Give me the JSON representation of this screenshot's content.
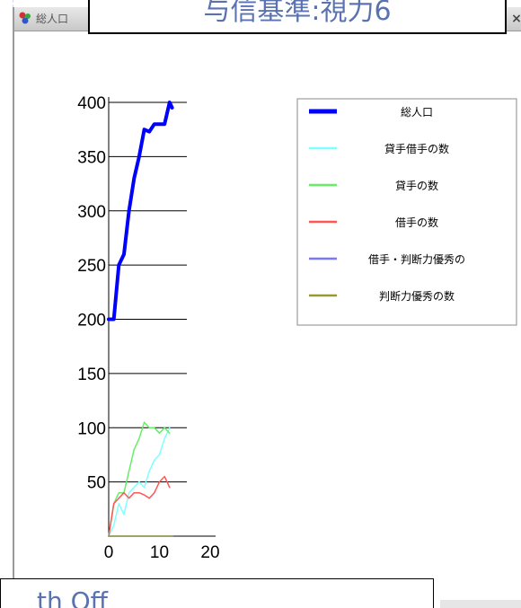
{
  "window": {
    "title": "総人口",
    "close_label": "×"
  },
  "slide": {
    "title": "与信基準:視力6",
    "bottom_text": "th Off"
  },
  "legend": [
    {
      "label": "総人口",
      "color": "#0000ff",
      "width": 4
    },
    {
      "label": "貸手借手の数",
      "color": "#7fffff",
      "width": 1.5
    },
    {
      "label": "貸手の数",
      "color": "#66ee66",
      "width": 1.5
    },
    {
      "label": "借手の数",
      "color": "#ff5555",
      "width": 1.5
    },
    {
      "label": "借手・判断力優秀の",
      "color": "#7777ff",
      "width": 1.5
    },
    {
      "label": "判断力優秀の数",
      "color": "#999933",
      "width": 1.5
    }
  ],
  "chart_data": {
    "type": "line",
    "xlim": [
      0,
      20
    ],
    "ylim": [
      0,
      400
    ],
    "xticks": [
      "0",
      "10",
      "20"
    ],
    "yticks": [
      "50",
      "100",
      "150",
      "200",
      "250",
      "300",
      "350",
      "400"
    ],
    "legend_position": "top-right",
    "series": [
      {
        "name": "総人口",
        "color": "#0000ff",
        "width": 4,
        "points": [
          [
            0,
            200
          ],
          [
            1,
            200
          ],
          [
            2,
            250
          ],
          [
            3,
            260
          ],
          [
            4,
            300
          ],
          [
            5,
            330
          ],
          [
            6,
            350
          ],
          [
            7,
            375
          ],
          [
            8,
            373
          ],
          [
            9,
            380
          ],
          [
            10,
            380
          ],
          [
            11,
            380
          ],
          [
            12,
            400
          ],
          [
            12.5,
            395
          ]
        ]
      },
      {
        "name": "貸手借手の数",
        "color": "#7fffff",
        "width": 1.5,
        "points": [
          [
            0,
            0
          ],
          [
            1,
            10
          ],
          [
            2,
            30
          ],
          [
            3,
            20
          ],
          [
            4,
            40
          ],
          [
            5,
            45
          ],
          [
            6,
            50
          ],
          [
            7,
            45
          ],
          [
            8,
            60
          ],
          [
            9,
            70
          ],
          [
            10,
            75
          ],
          [
            11,
            90
          ],
          [
            12,
            100
          ]
        ]
      },
      {
        "name": "貸手の数",
        "color": "#66ee66",
        "width": 1.5,
        "points": [
          [
            0,
            0
          ],
          [
            1,
            30
          ],
          [
            2,
            40
          ],
          [
            3,
            40
          ],
          [
            4,
            60
          ],
          [
            5,
            80
          ],
          [
            6,
            90
          ],
          [
            7,
            105
          ],
          [
            8,
            100
          ],
          [
            9,
            100
          ],
          [
            10,
            95
          ],
          [
            11,
            100
          ],
          [
            12,
            95
          ]
        ]
      },
      {
        "name": "借手の数",
        "color": "#ff5555",
        "width": 1.5,
        "points": [
          [
            0,
            0
          ],
          [
            1,
            30
          ],
          [
            2,
            35
          ],
          [
            3,
            40
          ],
          [
            4,
            35
          ],
          [
            5,
            40
          ],
          [
            6,
            40
          ],
          [
            7,
            38
          ],
          [
            8,
            35
          ],
          [
            9,
            40
          ],
          [
            10,
            50
          ],
          [
            11,
            55
          ],
          [
            12,
            45
          ]
        ]
      },
      {
        "name": "借手・判断力優秀の",
        "color": "#7777ff",
        "width": 1.5,
        "points": [
          [
            0,
            0
          ],
          [
            12.5,
            0
          ]
        ]
      },
      {
        "name": "判断力優秀の数",
        "color": "#999933",
        "width": 1.5,
        "points": [
          [
            0,
            0
          ],
          [
            12.5,
            0
          ]
        ]
      }
    ]
  }
}
